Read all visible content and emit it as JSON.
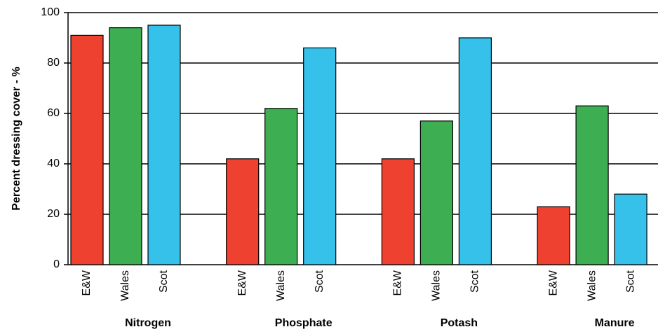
{
  "chart_data": {
    "type": "bar",
    "y_label": "Percent dressing cover - %",
    "categories": [
      "Nitrogen",
      "Phosphate",
      "Potash",
      "Manure"
    ],
    "series": [
      {
        "name": "E&W",
        "color": "#ee4130",
        "values": [
          91,
          42,
          42,
          23
        ]
      },
      {
        "name": "Wales",
        "color": "#3daf52",
        "values": [
          94,
          62,
          57,
          63
        ]
      },
      {
        "name": "Scot",
        "color": "#35c1ea",
        "values": [
          95,
          86,
          90,
          28
        ]
      }
    ],
    "ylim": [
      0,
      100
    ],
    "yticks": [
      0,
      20,
      40,
      60,
      80,
      100
    ],
    "grid": true
  }
}
